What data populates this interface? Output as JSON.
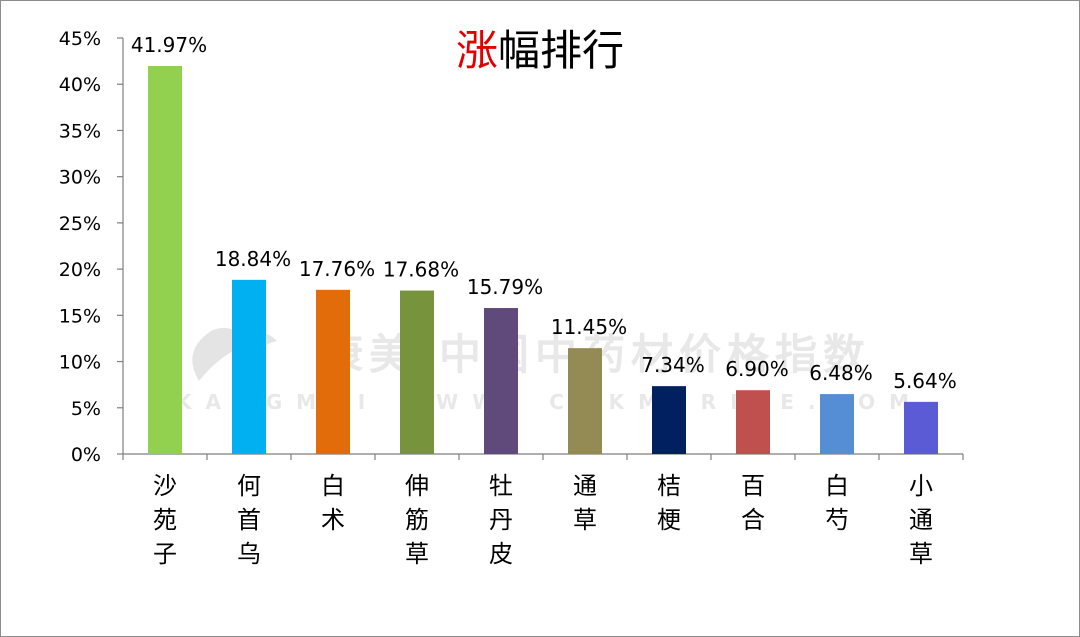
{
  "chart_data": {
    "type": "bar",
    "title": "涨幅排行",
    "title_highlight": "涨",
    "title_rest": "幅排行",
    "title_highlight_color": "#e00000",
    "ylim": [
      0,
      45
    ],
    "y_ticks": [
      "0%",
      "5%",
      "10%",
      "15%",
      "20%",
      "25%",
      "30%",
      "35%",
      "40%",
      "45%"
    ],
    "categories": [
      "沙苑子",
      "何首乌",
      "白术",
      "伸筋草",
      "牡丹皮",
      "通草",
      "桔梗",
      "百合",
      "白芍",
      "小通草"
    ],
    "values": [
      41.97,
      18.84,
      17.76,
      17.68,
      15.79,
      11.45,
      7.34,
      6.9,
      6.48,
      5.64
    ],
    "data_labels": [
      "41.97%",
      "18.84%",
      "17.76%",
      "17.68%",
      "15.79%",
      "11.45%",
      "7.34%",
      "6.90%",
      "6.48%",
      "5.64%"
    ],
    "colors": [
      "#92d050",
      "#00b0f0",
      "#e36c0a",
      "#77933c",
      "#604a7b",
      "#948a54",
      "#002060",
      "#c0504d",
      "#558ed5",
      "#5b5bd6"
    ],
    "grid": false,
    "legend": "none"
  },
  "watermark": {
    "line1": "康美·中国中药材价格指数",
    "line2": "KANGMEI WWW. CNKMPRICE.COM",
    "color": "#d8d8d8"
  }
}
